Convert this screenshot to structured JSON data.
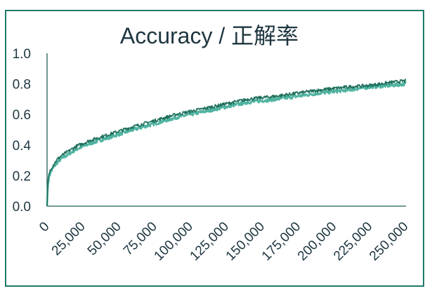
{
  "chart_data": {
    "type": "line",
    "title": "Accuracy / 正解率",
    "xlabel": "",
    "ylabel": "",
    "xlim": [
      0,
      250000
    ],
    "ylim": [
      0,
      1.0
    ],
    "y_ticks": [
      "0.0",
      "0.2",
      "0.4",
      "0.6",
      "0.8",
      "1.0"
    ],
    "x_ticks": [
      "0",
      "25,000",
      "50,000",
      "75,000",
      "100,000",
      "125,000",
      "150,000",
      "175,000",
      "200,000",
      "225,000",
      "250,000"
    ],
    "grid": false,
    "legend": "none",
    "colors": {
      "series_a": "#1f6f5c",
      "series_b": "#4fb3a0",
      "axis": "#1f5f55",
      "frame": "#1f7a6a",
      "text": "#1e3640"
    },
    "series": [
      {
        "x": [
          0,
          500,
          1000,
          2000,
          3000,
          5000,
          7500,
          10000,
          15000,
          20000,
          25000,
          30000,
          40000,
          50000,
          60000,
          75000,
          90000,
          100000,
          110000,
          125000,
          140000,
          150000,
          160000,
          175000,
          190000,
          200000,
          210000,
          225000,
          240000,
          250000
        ],
        "values": [
          0.0,
          0.15,
          0.19,
          0.23,
          0.25,
          0.28,
          0.31,
          0.33,
          0.36,
          0.39,
          0.41,
          0.43,
          0.46,
          0.49,
          0.52,
          0.56,
          0.6,
          0.62,
          0.64,
          0.67,
          0.7,
          0.71,
          0.72,
          0.74,
          0.76,
          0.77,
          0.78,
          0.79,
          0.81,
          0.82
        ]
      },
      {
        "x": [
          0,
          500,
          1000,
          2000,
          3000,
          5000,
          7500,
          10000,
          15000,
          20000,
          25000,
          30000,
          40000,
          50000,
          60000,
          75000,
          90000,
          100000,
          110000,
          125000,
          140000,
          150000,
          160000,
          175000,
          190000,
          200000,
          210000,
          225000,
          240000,
          250000
        ],
        "values": [
          0.0,
          0.13,
          0.17,
          0.21,
          0.23,
          0.26,
          0.29,
          0.31,
          0.34,
          0.37,
          0.39,
          0.41,
          0.44,
          0.47,
          0.5,
          0.54,
          0.58,
          0.6,
          0.62,
          0.65,
          0.68,
          0.69,
          0.7,
          0.72,
          0.74,
          0.75,
          0.76,
          0.78,
          0.79,
          0.8
        ]
      }
    ]
  }
}
